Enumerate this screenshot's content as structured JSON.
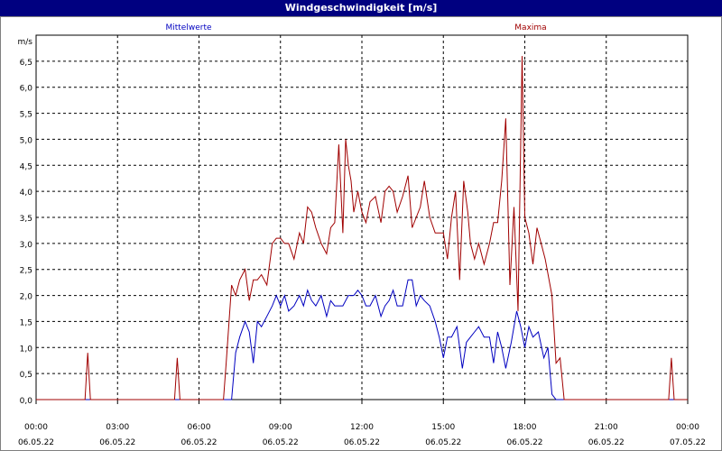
{
  "window": {
    "title": "Windgeschwindigkeit [m/s]"
  },
  "chart_data": {
    "type": "line",
    "title": "Windgeschwindigkeit [m/s]",
    "ylabel": "m/s",
    "ylim": [
      0,
      6.5
    ],
    "yticks": [
      "0,0",
      "0,5",
      "1,0",
      "1,5",
      "2,0",
      "2,5",
      "3,0",
      "3,5",
      "4,0",
      "4,5",
      "5,0",
      "5,5",
      "6,0",
      "6,5"
    ],
    "xlim": [
      0,
      24
    ],
    "xticks": [
      {
        "time": "00:00",
        "date": "06.05.22"
      },
      {
        "time": "03:00",
        "date": "06.05.22"
      },
      {
        "time": "06:00",
        "date": "06.05.22"
      },
      {
        "time": "09:00",
        "date": "06.05.22"
      },
      {
        "time": "12:00",
        "date": "06.05.22"
      },
      {
        "time": "15:00",
        "date": "06.05.22"
      },
      {
        "time": "18:00",
        "date": "06.05.22"
      },
      {
        "time": "21:00",
        "date": "06.05.22"
      },
      {
        "time": "00:00",
        "date": "07.05.22"
      }
    ],
    "grid": true,
    "colors": {
      "mittelwerte": "#0000c0",
      "maxima": "#a00000",
      "grid": "#000000"
    },
    "series": [
      {
        "name": "Mittelwerte",
        "color": "#0000c0",
        "x": [
          0,
          7.2,
          7.35,
          7.5,
          7.7,
          7.85,
          8.0,
          8.15,
          8.3,
          8.5,
          8.7,
          8.85,
          9.0,
          9.15,
          9.3,
          9.5,
          9.7,
          9.85,
          10.0,
          10.15,
          10.3,
          10.5,
          10.7,
          10.85,
          11.0,
          11.15,
          11.3,
          11.5,
          11.7,
          11.85,
          12.0,
          12.15,
          12.3,
          12.5,
          12.7,
          12.85,
          13.0,
          13.15,
          13.3,
          13.5,
          13.7,
          13.85,
          14.0,
          14.15,
          14.3,
          14.5,
          14.7,
          14.85,
          15.0,
          15.15,
          15.3,
          15.5,
          15.7,
          15.85,
          16.0,
          16.15,
          16.3,
          16.5,
          16.7,
          16.85,
          17.0,
          17.15,
          17.3,
          17.5,
          17.7,
          17.85,
          18.0,
          18.15,
          18.3,
          18.5,
          18.7,
          18.85,
          19.0,
          19.15,
          19.3,
          24
        ],
        "values": [
          0,
          0,
          0.9,
          1.2,
          1.5,
          1.3,
          0.7,
          1.5,
          1.4,
          1.6,
          1.8,
          2.0,
          1.8,
          2.0,
          1.7,
          1.8,
          2.0,
          1.8,
          2.1,
          1.9,
          1.8,
          2.0,
          1.6,
          1.9,
          1.8,
          1.8,
          1.8,
          2.0,
          2.0,
          2.1,
          2.0,
          1.8,
          1.8,
          2.0,
          1.6,
          1.8,
          1.9,
          2.1,
          1.8,
          1.8,
          2.3,
          2.3,
          1.8,
          2.0,
          1.9,
          1.8,
          1.5,
          1.2,
          0.8,
          1.2,
          1.2,
          1.4,
          0.6,
          1.1,
          1.2,
          1.3,
          1.4,
          1.2,
          1.2,
          0.7,
          1.3,
          1.0,
          0.6,
          1.1,
          1.7,
          1.4,
          1.0,
          1.4,
          1.2,
          1.3,
          0.8,
          1.0,
          0.1,
          0.0,
          0.0,
          0
        ]
      },
      {
        "name": "Maxima",
        "color": "#a00000",
        "x": [
          0,
          1.8,
          1.9,
          2.0,
          5.1,
          5.2,
          5.3,
          6.9,
          7.0,
          7.2,
          7.35,
          7.5,
          7.7,
          7.85,
          8.0,
          8.15,
          8.3,
          8.5,
          8.7,
          8.85,
          9.0,
          9.15,
          9.3,
          9.5,
          9.7,
          9.85,
          10.0,
          10.15,
          10.3,
          10.5,
          10.7,
          10.85,
          11.0,
          11.15,
          11.3,
          11.4,
          11.5,
          11.6,
          11.7,
          11.85,
          12.0,
          12.15,
          12.3,
          12.5,
          12.7,
          12.85,
          13.0,
          13.15,
          13.3,
          13.5,
          13.7,
          13.85,
          14.0,
          14.15,
          14.3,
          14.5,
          14.7,
          14.85,
          15.0,
          15.15,
          15.3,
          15.45,
          15.6,
          15.75,
          15.9,
          16.0,
          16.15,
          16.3,
          16.5,
          16.7,
          16.85,
          17.0,
          17.15,
          17.3,
          17.45,
          17.6,
          17.75,
          17.9,
          18.0,
          18.15,
          18.3,
          18.45,
          18.6,
          18.75,
          19.0,
          19.15,
          19.3,
          19.45,
          23.3,
          23.4,
          23.5,
          24
        ],
        "values": [
          0,
          0,
          0.9,
          0,
          0,
          0.8,
          0,
          0,
          0.7,
          2.2,
          2.0,
          2.3,
          2.5,
          1.9,
          2.3,
          2.3,
          2.4,
          2.2,
          3.0,
          3.1,
          3.1,
          3.0,
          3.0,
          2.7,
          3.2,
          3.0,
          3.7,
          3.6,
          3.3,
          3.0,
          2.8,
          3.3,
          3.4,
          4.9,
          3.2,
          5.0,
          4.5,
          4.2,
          3.6,
          4.0,
          3.6,
          3.4,
          3.8,
          3.9,
          3.4,
          4.0,
          4.1,
          4.0,
          3.6,
          3.9,
          4.3,
          3.3,
          3.5,
          3.7,
          4.2,
          3.5,
          3.2,
          3.2,
          3.2,
          2.7,
          3.5,
          4.0,
          2.3,
          4.2,
          3.6,
          3.0,
          2.7,
          3.0,
          2.6,
          3.0,
          3.4,
          3.4,
          4.2,
          5.4,
          2.2,
          3.7,
          1.7,
          6.6,
          3.5,
          3.2,
          2.6,
          3.3,
          3.0,
          2.7,
          2.0,
          0.7,
          0.8,
          0.0,
          0,
          0.8,
          0,
          0
        ]
      }
    ]
  },
  "legend": {
    "mittelwerte": "Mittelwerte",
    "maxima": "Maxima"
  }
}
